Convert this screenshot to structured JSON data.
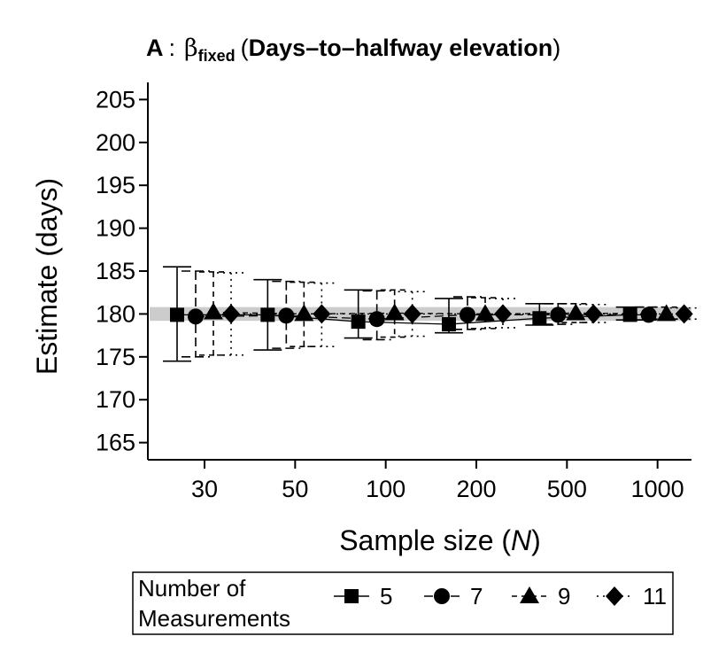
{
  "chart_data": {
    "type": "scatter",
    "title_panel": "A",
    "title_colon": ":",
    "title_beta": "β",
    "title_sub": "fixed",
    "title_rest": "Days–to–halfway elevation",
    "ylabel": "Estimate (days)",
    "xlabel": "Sample size (",
    "xlabel_var": "N",
    "xlabel_close": ")",
    "categories": [
      "30",
      "50",
      "100",
      "200",
      "500",
      "1000"
    ],
    "ylim": [
      163,
      207
    ],
    "yticks": [
      165,
      170,
      175,
      180,
      185,
      190,
      195,
      200,
      205
    ],
    "reference_line": 180,
    "reference_color": "#cccccc",
    "legend": {
      "title_line1": "Number of",
      "title_line2": "Measurements",
      "placement": "bottom"
    },
    "series": [
      {
        "name": "5",
        "marker": "square",
        "line": "solid",
        "values": [
          179.9,
          179.9,
          179.1,
          178.8,
          179.5,
          179.9
        ],
        "lower": [
          174.5,
          175.8,
          177.2,
          177.8,
          178.7,
          179.3
        ],
        "upper": [
          185.5,
          184.0,
          182.8,
          181.8,
          181.2,
          180.8
        ]
      },
      {
        "name": "7",
        "marker": "circle",
        "line": "longdash",
        "values": [
          179.7,
          179.8,
          179.4,
          179.9,
          179.9,
          179.9
        ],
        "lower": [
          175.0,
          176.0,
          177.0,
          178.2,
          178.8,
          179.3
        ],
        "upper": [
          185.0,
          183.8,
          182.7,
          182.0,
          181.2,
          180.8
        ]
      },
      {
        "name": "9",
        "marker": "triangle",
        "line": "dash",
        "values": [
          180.2,
          180.0,
          180.1,
          180.0,
          180.1,
          180.0
        ],
        "lower": [
          175.2,
          176.2,
          177.3,
          178.3,
          179.0,
          179.4
        ],
        "upper": [
          184.9,
          183.7,
          182.8,
          181.9,
          181.2,
          180.8
        ]
      },
      {
        "name": "11",
        "marker": "diamond",
        "line": "dot",
        "values": [
          180.0,
          180.0,
          180.0,
          180.0,
          180.0,
          180.0
        ],
        "lower": [
          175.2,
          176.2,
          177.4,
          178.4,
          179.0,
          179.4
        ],
        "upper": [
          184.8,
          183.6,
          182.6,
          181.8,
          181.1,
          180.7
        ]
      }
    ]
  }
}
